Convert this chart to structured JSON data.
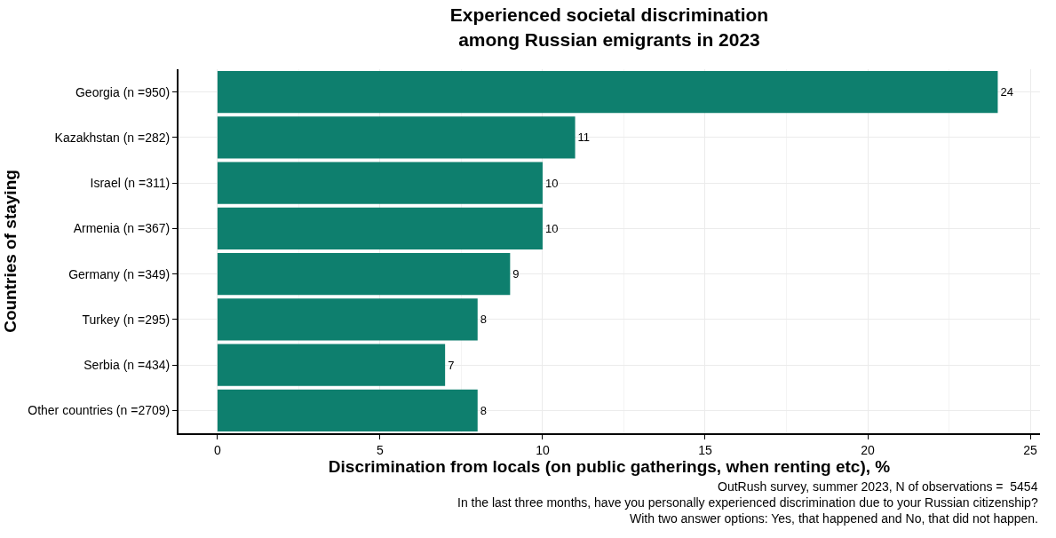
{
  "chart_data": {
    "type": "bar",
    "orientation": "horizontal",
    "title": "Experienced societal discrimination\namong Russian emigrants in 2023",
    "xlabel": "Discrimination from locals (on public gatherings, when renting etc), %",
    "ylabel": "Countries of staying",
    "categories": [
      "Georgia (n =950)",
      "Kazakhstan (n =282)",
      "Israel (n =311)",
      "Armenia (n =367)",
      "Germany (n =349)",
      "Turkey (n =295)",
      "Serbia (n =434)",
      "Other countries (n =2709)"
    ],
    "values": [
      24,
      11,
      10,
      10,
      9,
      8,
      7,
      8
    ],
    "color": "#0e7f6e",
    "data_labels": true,
    "xlim": [
      -1.2,
      25.3
    ],
    "xticks": [
      0,
      5,
      10,
      15,
      20,
      25
    ],
    "grid": true,
    "legend": false,
    "annotations": [
      "OutRush survey, summer 2023, N of observations =  5454",
      "In the last three months, have you personally experienced discrimination due to your Russian citizenship?",
      "With two answer options: Yes, that happened and No, that did not happen."
    ]
  }
}
